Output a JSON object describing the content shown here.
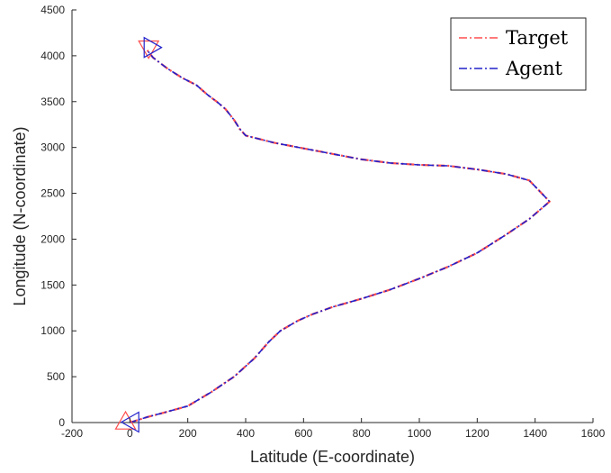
{
  "chart_data": {
    "type": "line",
    "xlabel": "Latitude (E-coordinate)",
    "ylabel": "Longitude (N-coordinate)",
    "xlim": [
      -200,
      1600
    ],
    "ylim": [
      0,
      4500
    ],
    "xticks": [
      -200,
      0,
      200,
      400,
      600,
      800,
      1000,
      1200,
      1400,
      1600
    ],
    "yticks": [
      0,
      500,
      1000,
      1500,
      2000,
      2500,
      3000,
      3500,
      4000,
      4500
    ],
    "grid": false,
    "legend_position": "top-right",
    "series": [
      {
        "name": "Target",
        "color": "#ff4d4d",
        "line_style": "dash-dot",
        "x": [
          0,
          60,
          120,
          200,
          280,
          360,
          430,
          480,
          520,
          580,
          630,
          700,
          800,
          900,
          1000,
          1100,
          1200,
          1300,
          1380,
          1450,
          1380,
          1300,
          1200,
          1100,
          1000,
          900,
          800,
          700,
          600,
          500,
          400,
          380,
          360,
          330,
          300,
          270,
          230,
          180,
          130,
          80,
          60
        ],
        "y": [
          0,
          60,
          110,
          180,
          330,
          500,
          700,
          880,
          1000,
          1110,
          1180,
          1260,
          1350,
          1450,
          1570,
          1700,
          1850,
          2050,
          2220,
          2410,
          2640,
          2710,
          2760,
          2800,
          2810,
          2830,
          2870,
          2930,
          2990,
          3050,
          3130,
          3200,
          3300,
          3420,
          3500,
          3570,
          3680,
          3760,
          3860,
          3980,
          4060
        ]
      },
      {
        "name": "Agent",
        "color": "#2222cc",
        "line_style": "dash-dot",
        "x": [
          0,
          60,
          120,
          200,
          280,
          360,
          430,
          480,
          520,
          580,
          630,
          700,
          800,
          900,
          1000,
          1100,
          1200,
          1300,
          1380,
          1450,
          1380,
          1300,
          1200,
          1100,
          1000,
          900,
          800,
          700,
          600,
          500,
          400,
          380,
          360,
          330,
          300,
          270,
          230,
          180,
          130,
          80,
          60
        ],
        "y": [
          0,
          60,
          110,
          180,
          330,
          500,
          700,
          880,
          1000,
          1110,
          1180,
          1260,
          1350,
          1450,
          1570,
          1700,
          1850,
          2050,
          2220,
          2410,
          2640,
          2710,
          2760,
          2800,
          2810,
          2830,
          2870,
          2930,
          2990,
          3050,
          3130,
          3200,
          3300,
          3420,
          3500,
          3570,
          3680,
          3760,
          3860,
          3980,
          4060
        ]
      }
    ],
    "markers": [
      {
        "series": "Target",
        "shape": "triangle-up",
        "color": "#ff4d4d",
        "x": -15,
        "y": 10
      },
      {
        "series": "Agent",
        "shape": "triangle-left",
        "color": "#2222cc",
        "x": 5,
        "y": 5
      },
      {
        "series": "Target",
        "shape": "triangle-down",
        "color": "#ff4d4d",
        "x": 65,
        "y": 4080
      },
      {
        "series": "Agent",
        "shape": "triangle-right",
        "color": "#2222cc",
        "x": 75,
        "y": 4090
      }
    ]
  }
}
